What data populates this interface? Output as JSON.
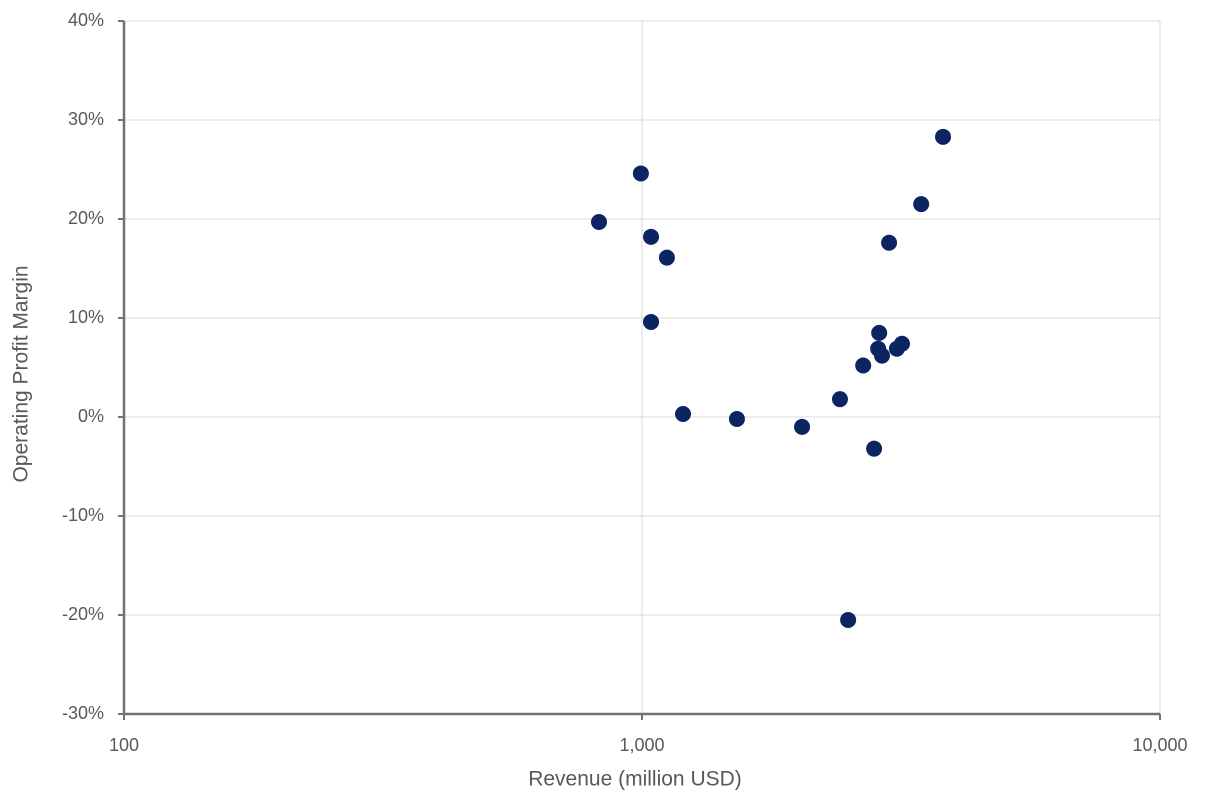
{
  "chart_data": {
    "type": "scatter",
    "x_label": "Revenue (million USD)",
    "y_label": "Operating Profit Margin",
    "x_log": true,
    "grid": true,
    "color": "#0c2461",
    "x": [
      826,
      995,
      1041,
      1117,
      1041,
      1200,
      1525,
      2037,
      2411,
      2500,
      2673,
      2806,
      2857,
      2870,
      2906,
      2999,
      3105,
      3176,
      3459,
      3812
    ],
    "values": [
      19.7,
      24.6,
      18.2,
      16.1,
      9.6,
      0.3,
      -0.2,
      -1.0,
      1.8,
      -20.5,
      5.2,
      -3.2,
      6.9,
      8.5,
      6.2,
      17.6,
      6.9,
      7.4,
      21.5,
      28.3
    ],
    "xlim": [
      100,
      10000
    ],
    "xticks": [
      100,
      {
        "value": 1000,
        "label": "1,000"
      },
      {
        "value": 10000,
        "label": "10,000"
      }
    ],
    "ylim": [
      -30,
      40
    ],
    "yticks": [
      {
        "value": -30,
        "label": "-30%"
      },
      {
        "value": -20,
        "label": "-20%"
      },
      {
        "value": -10,
        "label": "-10%"
      },
      {
        "value": 0,
        "label": "0%"
      },
      {
        "value": 10,
        "label": "10%"
      },
      {
        "value": 20,
        "label": "20%"
      },
      {
        "value": 30,
        "label": "30%"
      },
      {
        "value": 40,
        "label": "40%"
      }
    ]
  }
}
